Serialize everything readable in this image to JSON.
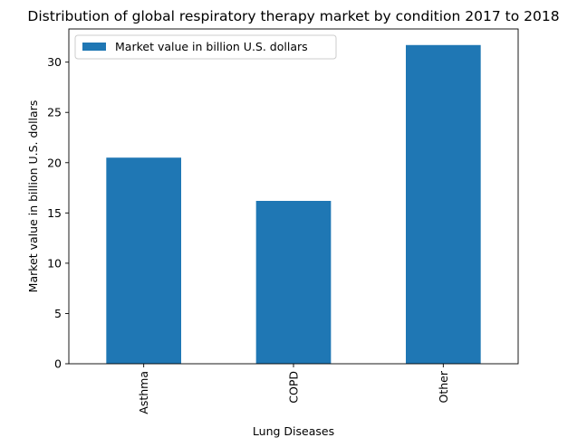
{
  "chart_data": {
    "type": "bar",
    "title": "Distribution of global respiratory therapy market by condition 2017 to 2018",
    "xlabel": "Lung Diseases",
    "ylabel": "Market value in billion U.S. dollars",
    "categories": [
      "Asthma",
      "COPD",
      "Other"
    ],
    "series": [
      {
        "name": "Market value in billion U.S. dollars",
        "values": [
          20.5,
          16.2,
          31.7
        ],
        "color": "#1f77b4"
      }
    ],
    "ylim": [
      0,
      33.3
    ],
    "yticks": [
      0,
      5,
      10,
      15,
      20,
      25,
      30
    ],
    "grid": false,
    "legend": "top-left"
  }
}
